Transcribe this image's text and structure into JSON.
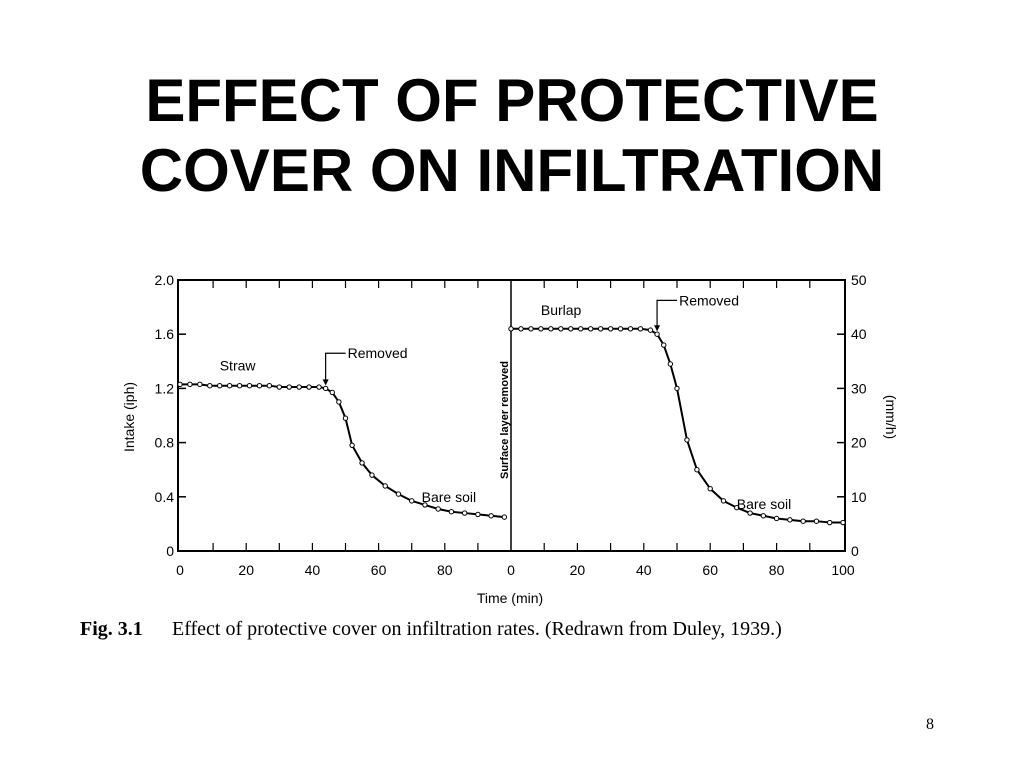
{
  "slide": {
    "title_line1": "EFFECT OF PROTECTIVE",
    "title_line2": "COVER ON INFILTRATION",
    "caption_label": "Fig. 3.1",
    "caption_text": "Effect of protective cover on infiltration rates. (Redrawn from Duley, 1939.)",
    "page_number": "8"
  },
  "chart_data": {
    "type": "line",
    "xlabel": "Time (min)",
    "ylabel_left": "Intake (iph)",
    "ylabel_right": "(mm/h)",
    "left_axis": {
      "ylim": [
        0,
        2.0
      ],
      "ticks": [
        "0",
        "0.4",
        "0.8",
        "1.2",
        "1.6",
        "2.0"
      ],
      "values": [
        0,
        0.4,
        0.8,
        1.2,
        1.6,
        2.0
      ]
    },
    "right_axis": {
      "ylim": [
        0,
        50
      ],
      "ticks": [
        "0",
        "10",
        "20",
        "30",
        "40",
        "50"
      ],
      "values": [
        0,
        10,
        20,
        30,
        40,
        50
      ]
    },
    "panels": [
      {
        "xlim": [
          0,
          100
        ],
        "xticks": [
          "0",
          "20",
          "40",
          "60",
          "80"
        ],
        "xtick_values": [
          0,
          20,
          40,
          60,
          80
        ],
        "series": {
          "x": [
            0,
            3,
            6,
            9,
            12,
            15,
            18,
            21,
            24,
            27,
            30,
            33,
            36,
            39,
            42,
            44,
            46,
            48,
            50,
            52,
            55,
            58,
            62,
            66,
            70,
            74,
            78,
            82,
            86,
            90,
            94,
            98
          ],
          "y": [
            1.23,
            1.23,
            1.23,
            1.22,
            1.22,
            1.22,
            1.22,
            1.22,
            1.22,
            1.22,
            1.21,
            1.21,
            1.21,
            1.21,
            1.21,
            1.2,
            1.17,
            1.1,
            0.98,
            0.78,
            0.65,
            0.56,
            0.48,
            0.42,
            0.37,
            0.34,
            0.31,
            0.29,
            0.28,
            0.27,
            0.26,
            0.25
          ]
        },
        "annotations": {
          "cover_label": "Straw",
          "removed_label": "Removed",
          "bare_label": "Bare soil"
        }
      },
      {
        "xlim": [
          0,
          100
        ],
        "xticks": [
          "0",
          "20",
          "40",
          "60",
          "80",
          "100"
        ],
        "xtick_values": [
          0,
          20,
          40,
          60,
          80,
          100
        ],
        "series": {
          "x": [
            0,
            3,
            6,
            9,
            12,
            15,
            18,
            21,
            24,
            27,
            30,
            33,
            36,
            39,
            42,
            44,
            46,
            48,
            50,
            53,
            56,
            60,
            64,
            68,
            72,
            76,
            80,
            84,
            88,
            92,
            96,
            100
          ],
          "y": [
            1.64,
            1.64,
            1.64,
            1.64,
            1.64,
            1.64,
            1.64,
            1.64,
            1.64,
            1.64,
            1.64,
            1.64,
            1.64,
            1.64,
            1.63,
            1.6,
            1.52,
            1.38,
            1.2,
            0.82,
            0.6,
            0.46,
            0.37,
            0.32,
            0.28,
            0.26,
            0.24,
            0.23,
            0.22,
            0.22,
            0.21,
            0.21
          ]
        },
        "annotations": {
          "cover_label": "Burlap",
          "removed_label": "Removed",
          "bare_label": "Bare soil"
        }
      }
    ],
    "divider_label": "Surface layer removed",
    "grid": false
  }
}
